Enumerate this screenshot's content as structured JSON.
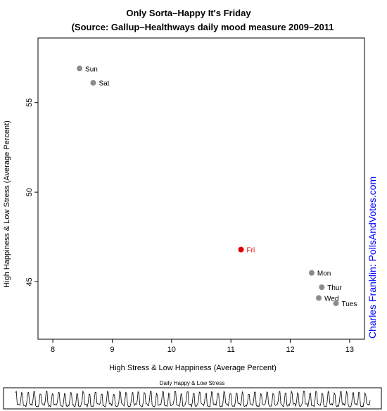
{
  "chart_data": [
    {
      "type": "scatter",
      "title": "Only Sorta–Happy It's Friday",
      "subtitle": "(Source: Gallup–Healthways daily mood measure 2009–2011",
      "xlabel": "High Stress & Low Happiness (Average Percent)",
      "ylabel": "High Happiness & Low Stress (Average Percent)",
      "xlim": [
        7.75,
        13.25
      ],
      "ylim": [
        41.8,
        58.6
      ],
      "xticks": [
        8,
        9,
        10,
        11,
        12,
        13
      ],
      "yticks": [
        45,
        50,
        55
      ],
      "grid": false,
      "points": [
        {
          "label": "Sun",
          "x": 8.45,
          "y": 56.9,
          "color": "#8c8c8c"
        },
        {
          "label": "Sat",
          "x": 8.68,
          "y": 56.1,
          "color": "#8c8c8c"
        },
        {
          "label": "Fri",
          "x": 11.17,
          "y": 46.8,
          "color": "#e00000"
        },
        {
          "label": "Mon",
          "x": 12.36,
          "y": 45.5,
          "color": "#8c8c8c"
        },
        {
          "label": "Thur",
          "x": 12.53,
          "y": 44.7,
          "color": "#8c8c8c"
        },
        {
          "label": "Wed",
          "x": 12.48,
          "y": 44.1,
          "color": "#8c8c8c"
        },
        {
          "label": "Tues",
          "x": 12.77,
          "y": 43.8,
          "color": "#8c8c8c"
        }
      ]
    },
    {
      "type": "line",
      "title": "Daily Happy & Low Stress",
      "pattern_7day": [
        0.92,
        0.88,
        0.15,
        0.08,
        0.1,
        0.05,
        0.35
      ],
      "color": "#000000"
    }
  ],
  "credit": "Charles Franklin: PollsAndVotes.com",
  "colors": {
    "credit": "#0000ff",
    "highlight": "#e00000",
    "default_point": "#8c8c8c"
  }
}
